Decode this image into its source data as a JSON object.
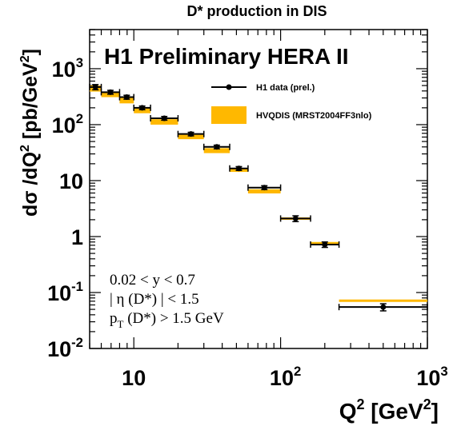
{
  "chart_data": {
    "type": "scatter",
    "title": "D* production in DIS",
    "experiment_label": "H1 Preliminary HERA II",
    "xlabel_base": "Q",
    "xlabel_exp": "2",
    "xlabel_unit_open": " [GeV",
    "xlabel_unit_exp": "2",
    "xlabel_unit_close": "]",
    "ylabel_pre": "dσ /dQ",
    "ylabel_exp": "2",
    "ylabel_unit_open": " [pb/GeV",
    "ylabel_unit_exp": "2",
    "ylabel_unit_close": "]",
    "x_scale": "log",
    "y_scale": "log",
    "xlim": [
      5,
      1000
    ],
    "ylim": [
      0.01,
      5000
    ],
    "x_ticks": [
      {
        "value": 10,
        "base": "10",
        "exp": ""
      },
      {
        "value": 100,
        "base": "10",
        "exp": "2"
      },
      {
        "value": 1000,
        "base": "10",
        "exp": "3"
      }
    ],
    "y_ticks": [
      {
        "value": 0.01,
        "base": "10",
        "exp": "-2"
      },
      {
        "value": 0.1,
        "base": "10",
        "exp": "-1"
      },
      {
        "value": 1,
        "base": "1",
        "exp": ""
      },
      {
        "value": 10,
        "base": "10",
        "exp": ""
      },
      {
        "value": 100,
        "base": "10",
        "exp": "2"
      },
      {
        "value": 1000,
        "base": "10",
        "exp": "3"
      }
    ],
    "legend_position": "top-right",
    "series": [
      {
        "name": "H1 data (prel.)",
        "kind": "points",
        "color": "#000000",
        "points": [
          {
            "x_low": 5,
            "x_high": 6,
            "y": 470,
            "y_err": 50
          },
          {
            "x_low": 6,
            "x_high": 8,
            "y": 380,
            "y_err": 30
          },
          {
            "x_low": 8,
            "x_high": 10,
            "y": 310,
            "y_err": 25
          },
          {
            "x_low": 10,
            "x_high": 13,
            "y": 200,
            "y_err": 15
          },
          {
            "x_low": 13,
            "x_high": 20,
            "y": 130,
            "y_err": 10
          },
          {
            "x_low": 20,
            "x_high": 30,
            "y": 68,
            "y_err": 5
          },
          {
            "x_low": 30,
            "x_high": 45,
            "y": 40,
            "y_err": 3
          },
          {
            "x_low": 45,
            "x_high": 60,
            "y": 16.5,
            "y_err": 1.3
          },
          {
            "x_low": 60,
            "x_high": 100,
            "y": 7.5,
            "y_err": 0.6
          },
          {
            "x_low": 100,
            "x_high": 160,
            "y": 2.1,
            "y_err": 0.25
          },
          {
            "x_low": 160,
            "x_high": 250,
            "y": 0.72,
            "y_err": 0.08
          },
          {
            "x_low": 250,
            "x_high": 1000,
            "y": 0.055,
            "y_err": 0.008
          }
        ]
      },
      {
        "name": "HVQDIS (MRST2004FF3nlo)",
        "kind": "band",
        "color": "#ffb800",
        "bins": [
          {
            "x_low": 5,
            "x_high": 6,
            "y_low": 390,
            "y_high": 500
          },
          {
            "x_low": 6,
            "x_high": 8,
            "y_low": 310,
            "y_high": 380
          },
          {
            "x_low": 8,
            "x_high": 10,
            "y_low": 240,
            "y_high": 300
          },
          {
            "x_low": 10,
            "x_high": 13,
            "y_low": 160,
            "y_high": 200
          },
          {
            "x_low": 13,
            "x_high": 20,
            "y_low": 100,
            "y_high": 125
          },
          {
            "x_low": 20,
            "x_high": 30,
            "y_low": 55,
            "y_high": 66
          },
          {
            "x_low": 30,
            "x_high": 45,
            "y_low": 31,
            "y_high": 38
          },
          {
            "x_low": 45,
            "x_high": 60,
            "y_low": 14.3,
            "y_high": 16.2
          },
          {
            "x_low": 60,
            "x_high": 100,
            "y_low": 5.9,
            "y_high": 7.0
          },
          {
            "x_low": 100,
            "x_high": 160,
            "y_low": 2.0,
            "y_high": 2.2
          },
          {
            "x_low": 160,
            "x_high": 250,
            "y_low": 0.7,
            "y_high": 0.8
          },
          {
            "x_low": 250,
            "x_high": 1000,
            "y_low": 0.069,
            "y_high": 0.075
          }
        ]
      }
    ],
    "cuts": [
      {
        "text": "0.02 < y < 0.7"
      },
      {
        "text": "| η (D*) | < 1.5"
      },
      {
        "text_pre": "p",
        "text_sub": "T",
        "text_post": " (D*) > 1.5 GeV"
      }
    ]
  }
}
